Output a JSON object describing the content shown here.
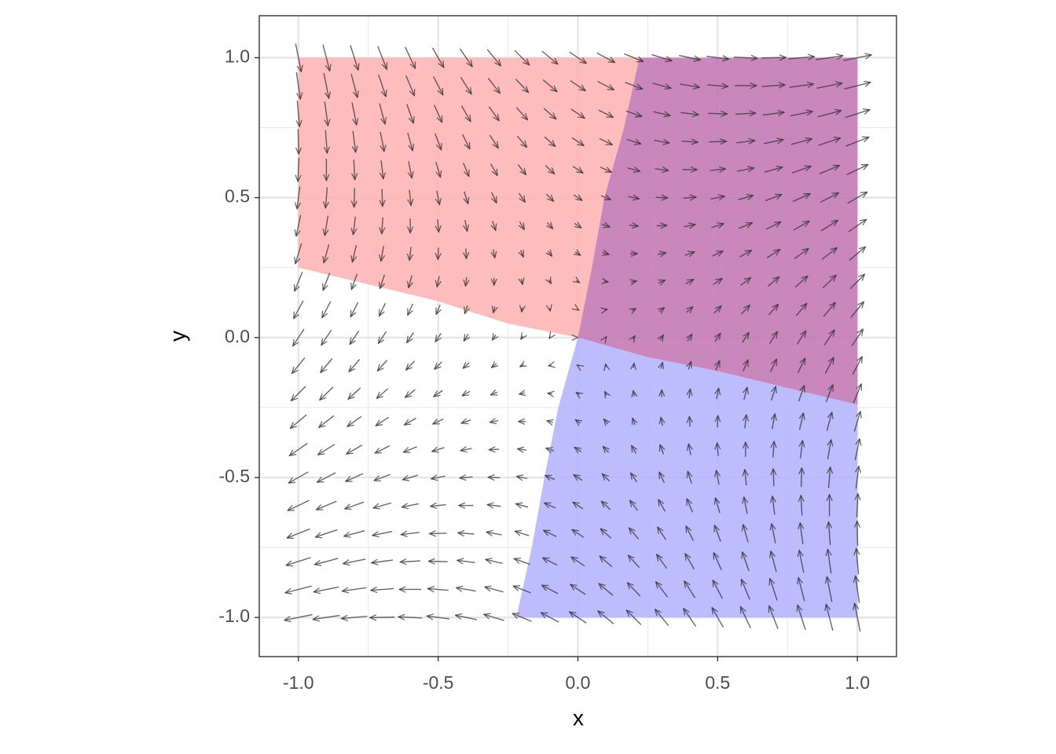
{
  "chart_data": {
    "type": "quiver",
    "xlabel": "x",
    "ylabel": "y",
    "xlim": [
      -1.14,
      1.14
    ],
    "ylim": [
      -1.14,
      1.15
    ],
    "xticks": [
      {
        "value": -1,
        "label": "-1.0"
      },
      {
        "value": -0.5,
        "label": "-0.5"
      },
      {
        "value": 0,
        "label": "0.0"
      },
      {
        "value": 0.5,
        "label": "0.5"
      },
      {
        "value": 1,
        "label": "1.0"
      }
    ],
    "yticks": [
      {
        "value": -1,
        "label": "-1.0"
      },
      {
        "value": -0.5,
        "label": "-0.5"
      },
      {
        "value": 0,
        "label": "0.0"
      },
      {
        "value": 0.5,
        "label": "0.5"
      },
      {
        "value": 1,
        "label": "1.0"
      }
    ],
    "minor_grid": [
      -0.75,
      -0.25,
      0.25,
      0.75
    ],
    "grid": true,
    "arrow_color": "#333333",
    "regions": [
      {
        "color": "#ffb3b3",
        "x": [
          -1,
          0.22,
          0.165,
          0.095,
          0.05,
          0,
          -0.25,
          -0.5,
          -1
        ],
        "y": [
          1,
          1,
          0.75,
          0.5,
          0.25,
          0,
          0.05,
          0.13,
          0.25
        ]
      },
      {
        "color": "#c276b3",
        "x": [
          0.22,
          1,
          1,
          0.5,
          0.25,
          0,
          0.05,
          0.095,
          0.165
        ],
        "y": [
          1,
          1,
          -0.24,
          -0.12,
          -0.07,
          0,
          0.25,
          0.5,
          0.75
        ]
      },
      {
        "color": "#b3b3ff",
        "x": [
          0,
          0.25,
          0.5,
          1,
          1,
          -0.22,
          -0.165,
          -0.12,
          -0.07
        ],
        "y": [
          0,
          -0.07,
          -0.12,
          -0.24,
          -1,
          -1,
          -0.75,
          -0.5,
          -0.25
        ]
      }
    ],
    "x": [
      -1,
      -0.9,
      -0.8,
      -0.7,
      -0.6,
      -0.5,
      -0.4,
      -0.3,
      -0.2,
      -0.1,
      0,
      0.1,
      0.2,
      0.3,
      0.4,
      0.5,
      0.6,
      0.7,
      0.8,
      0.9,
      1
    ],
    "y": [
      -1,
      -0.9,
      -0.8,
      -0.7,
      -0.6,
      -0.5,
      -0.4,
      -0.3,
      -0.2,
      -0.1,
      0,
      0.1,
      0.2,
      0.3,
      0.4,
      0.5,
      0.6,
      0.7,
      0.8,
      0.9,
      1
    ],
    "dx": [
      [
        -0.1,
        -0.096,
        -0.092,
        -0.088,
        -0.084,
        -0.08,
        -0.076,
        -0.072,
        -0.068,
        -0.064,
        -0.06,
        -0.056,
        -0.052,
        -0.048,
        -0.044,
        -0.04,
        -0.036,
        -0.032,
        -0.028,
        -0.024,
        -0.02
      ],
      [
        -0.094,
        -0.09,
        -0.086,
        -0.082,
        -0.078,
        -0.074,
        -0.07,
        -0.066,
        -0.062,
        -0.058,
        -0.054,
        -0.05,
        -0.046,
        -0.042,
        -0.038,
        -0.034,
        -0.03,
        -0.026,
        -0.022,
        -0.018,
        -0.014
      ],
      [
        -0.088,
        -0.084,
        -0.08,
        -0.076,
        -0.072,
        -0.068,
        -0.064,
        -0.06,
        -0.056,
        -0.052,
        -0.048,
        -0.044,
        -0.04,
        -0.036,
        -0.032,
        -0.028,
        -0.024,
        -0.02,
        -0.016,
        -0.012,
        -0.008
      ],
      [
        -0.082,
        -0.078,
        -0.074,
        -0.07,
        -0.066,
        -0.062,
        -0.058,
        -0.054,
        -0.05,
        -0.046,
        -0.042,
        -0.038,
        -0.034,
        -0.03,
        -0.026,
        -0.022,
        -0.018,
        -0.014,
        -0.01,
        -0.006,
        -0.002
      ],
      [
        -0.076,
        -0.072,
        -0.068,
        -0.064,
        -0.06,
        -0.056,
        -0.052,
        -0.048,
        -0.044,
        -0.04,
        -0.036,
        -0.032,
        -0.028,
        -0.024,
        -0.02,
        -0.016,
        -0.012,
        -0.008,
        -0.004,
        0,
        0.004
      ],
      [
        -0.07,
        -0.066,
        -0.062,
        -0.058,
        -0.054,
        -0.05,
        -0.046,
        -0.042,
        -0.038,
        -0.034,
        -0.03,
        -0.026,
        -0.022,
        -0.018,
        -0.014,
        -0.01,
        -0.006,
        -0.002,
        0.002,
        0.006,
        0.01
      ],
      [
        -0.064,
        -0.06,
        -0.056,
        -0.052,
        -0.048,
        -0.044,
        -0.04,
        -0.036,
        -0.032,
        -0.028,
        -0.024,
        -0.02,
        -0.016,
        -0.012,
        -0.008,
        -0.004,
        0,
        0.004,
        0.008,
        0.012,
        0.016
      ],
      [
        -0.058,
        -0.054,
        -0.05,
        -0.046,
        -0.042,
        -0.038,
        -0.034,
        -0.03,
        -0.026,
        -0.022,
        -0.018,
        -0.014,
        -0.01,
        -0.006,
        -0.002,
        0.002,
        0.006,
        0.01,
        0.014,
        0.018,
        0.022
      ],
      [
        -0.052,
        -0.048,
        -0.044,
        -0.04,
        -0.036,
        -0.032,
        -0.028,
        -0.024,
        -0.02,
        -0.016,
        -0.012,
        -0.008,
        -0.004,
        0,
        0.004,
        0.008,
        0.012,
        0.016,
        0.02,
        0.024,
        0.028
      ],
      [
        -0.046,
        -0.042,
        -0.038,
        -0.034,
        -0.03,
        -0.026,
        -0.022,
        -0.018,
        -0.014,
        -0.01,
        -0.006,
        -0.002,
        0.002,
        0.006,
        0.01,
        0.014,
        0.018,
        0.022,
        0.026,
        0.03,
        0.034
      ],
      [
        -0.04,
        -0.036,
        -0.032,
        -0.028,
        -0.024,
        -0.02,
        -0.016,
        -0.012,
        -0.008,
        -0.004,
        0,
        0.004,
        0.008,
        0.012,
        0.016,
        0.02,
        0.024,
        0.028,
        0.032,
        0.036,
        0.04
      ],
      [
        -0.034,
        -0.03,
        -0.026,
        -0.022,
        -0.018,
        -0.014,
        -0.01,
        -0.006,
        -0.002,
        0.002,
        0.006,
        0.01,
        0.014,
        0.018,
        0.022,
        0.026,
        0.03,
        0.034,
        0.038,
        0.042,
        0.046
      ],
      [
        -0.028,
        -0.024,
        -0.02,
        -0.016,
        -0.012,
        -0.008,
        -0.004,
        0,
        0.004,
        0.008,
        0.012,
        0.016,
        0.02,
        0.024,
        0.028,
        0.032,
        0.036,
        0.04,
        0.044,
        0.048,
        0.052
      ],
      [
        -0.022,
        -0.018,
        -0.014,
        -0.01,
        -0.006,
        -0.002,
        0.002,
        0.006,
        0.01,
        0.014,
        0.018,
        0.022,
        0.026,
        0.03,
        0.034,
        0.038,
        0.042,
        0.046,
        0.05,
        0.054,
        0.058
      ],
      [
        -0.016,
        -0.012,
        -0.008,
        -0.004,
        0,
        0.004,
        0.008,
        0.012,
        0.016,
        0.02,
        0.024,
        0.028,
        0.032,
        0.036,
        0.04,
        0.044,
        0.048,
        0.052,
        0.056,
        0.06,
        0.064
      ],
      [
        -0.01,
        -0.006,
        -0.002,
        0.002,
        0.006,
        0.01,
        0.014,
        0.018,
        0.022,
        0.026,
        0.03,
        0.034,
        0.038,
        0.042,
        0.046,
        0.05,
        0.054,
        0.058,
        0.062,
        0.066,
        0.07
      ],
      [
        -0.004,
        0,
        0.004,
        0.008,
        0.012,
        0.016,
        0.02,
        0.024,
        0.028,
        0.032,
        0.036,
        0.04,
        0.044,
        0.048,
        0.052,
        0.056,
        0.06,
        0.064,
        0.068,
        0.072,
        0.076
      ],
      [
        0.002,
        0.006,
        0.01,
        0.014,
        0.018,
        0.022,
        0.026,
        0.03,
        0.034,
        0.038,
        0.042,
        0.046,
        0.05,
        0.054,
        0.058,
        0.062,
        0.066,
        0.07,
        0.074,
        0.078,
        0.082
      ],
      [
        0.008,
        0.012,
        0.016,
        0.02,
        0.024,
        0.028,
        0.032,
        0.036,
        0.04,
        0.044,
        0.048,
        0.052,
        0.056,
        0.06,
        0.064,
        0.068,
        0.072,
        0.076,
        0.08,
        0.084,
        0.088
      ],
      [
        0.014,
        0.018,
        0.022,
        0.026,
        0.03,
        0.034,
        0.038,
        0.042,
        0.046,
        0.05,
        0.054,
        0.058,
        0.062,
        0.066,
        0.07,
        0.074,
        0.078,
        0.082,
        0.086,
        0.09,
        0.094
      ],
      [
        0.02,
        0.024,
        0.028,
        0.032,
        0.036,
        0.04,
        0.044,
        0.048,
        0.052,
        0.056,
        0.06,
        0.064,
        0.068,
        0.072,
        0.076,
        0.08,
        0.084,
        0.088,
        0.092,
        0.096,
        0.1
      ]
    ],
    "dy": [
      [
        -0.02,
        -0.014,
        -0.008,
        -0.002,
        0.004,
        0.01,
        0.016,
        0.022,
        0.028,
        0.034,
        0.04,
        0.046,
        0.052,
        0.058,
        0.064,
        0.07,
        0.076,
        0.082,
        0.088,
        0.094,
        0.1
      ],
      [
        -0.024,
        -0.018,
        -0.012,
        -0.006,
        0,
        0.006,
        0.012,
        0.018,
        0.024,
        0.03,
        0.036,
        0.042,
        0.048,
        0.054,
        0.06,
        0.066,
        0.072,
        0.078,
        0.084,
        0.09,
        0.096
      ],
      [
        -0.028,
        -0.022,
        -0.016,
        -0.01,
        -0.004,
        0.002,
        0.008,
        0.014,
        0.02,
        0.026,
        0.032,
        0.038,
        0.044,
        0.05,
        0.056,
        0.062,
        0.068,
        0.074,
        0.08,
        0.086,
        0.092
      ],
      [
        -0.032,
        -0.026,
        -0.02,
        -0.014,
        -0.008,
        -0.002,
        0.004,
        0.01,
        0.016,
        0.022,
        0.028,
        0.034,
        0.04,
        0.046,
        0.052,
        0.058,
        0.064,
        0.07,
        0.076,
        0.082,
        0.088
      ],
      [
        -0.036,
        -0.03,
        -0.024,
        -0.018,
        -0.012,
        -0.006,
        0,
        0.006,
        0.012,
        0.018,
        0.024,
        0.03,
        0.036,
        0.042,
        0.048,
        0.054,
        0.06,
        0.066,
        0.072,
        0.078,
        0.084
      ],
      [
        -0.04,
        -0.034,
        -0.028,
        -0.022,
        -0.016,
        -0.01,
        -0.004,
        0.002,
        0.008,
        0.014,
        0.02,
        0.026,
        0.032,
        0.038,
        0.044,
        0.05,
        0.056,
        0.062,
        0.068,
        0.074,
        0.08
      ],
      [
        -0.044,
        -0.038,
        -0.032,
        -0.026,
        -0.02,
        -0.014,
        -0.008,
        -0.002,
        0.004,
        0.01,
        0.016,
        0.022,
        0.028,
        0.034,
        0.04,
        0.046,
        0.052,
        0.058,
        0.064,
        0.07,
        0.076
      ],
      [
        -0.048,
        -0.042,
        -0.036,
        -0.03,
        -0.024,
        -0.018,
        -0.012,
        -0.006,
        0,
        0.006,
        0.012,
        0.018,
        0.024,
        0.03,
        0.036,
        0.042,
        0.048,
        0.054,
        0.06,
        0.066,
        0.072
      ],
      [
        -0.052,
        -0.046,
        -0.04,
        -0.034,
        -0.028,
        -0.022,
        -0.016,
        -0.01,
        -0.004,
        0.002,
        0.008,
        0.014,
        0.02,
        0.026,
        0.032,
        0.038,
        0.044,
        0.05,
        0.056,
        0.062,
        0.068
      ],
      [
        -0.056,
        -0.05,
        -0.044,
        -0.038,
        -0.032,
        -0.026,
        -0.02,
        -0.014,
        -0.008,
        -0.002,
        0.004,
        0.01,
        0.016,
        0.022,
        0.028,
        0.034,
        0.04,
        0.046,
        0.052,
        0.058,
        0.064
      ],
      [
        -0.06,
        -0.054,
        -0.048,
        -0.042,
        -0.036,
        -0.03,
        -0.024,
        -0.018,
        -0.012,
        -0.006,
        0,
        0.006,
        0.012,
        0.018,
        0.024,
        0.03,
        0.036,
        0.042,
        0.048,
        0.054,
        0.06
      ],
      [
        -0.064,
        -0.058,
        -0.052,
        -0.046,
        -0.04,
        -0.034,
        -0.028,
        -0.022,
        -0.016,
        -0.01,
        -0.004,
        0.002,
        0.008,
        0.014,
        0.02,
        0.026,
        0.032,
        0.038,
        0.044,
        0.05,
        0.056
      ],
      [
        -0.068,
        -0.062,
        -0.056,
        -0.05,
        -0.044,
        -0.038,
        -0.032,
        -0.026,
        -0.02,
        -0.014,
        -0.008,
        -0.002,
        0.004,
        0.01,
        0.016,
        0.022,
        0.028,
        0.034,
        0.04,
        0.046,
        0.052
      ],
      [
        -0.072,
        -0.066,
        -0.06,
        -0.054,
        -0.048,
        -0.042,
        -0.036,
        -0.03,
        -0.024,
        -0.018,
        -0.012,
        -0.006,
        0,
        0.006,
        0.012,
        0.018,
        0.024,
        0.03,
        0.036,
        0.042,
        0.048
      ],
      [
        -0.076,
        -0.07,
        -0.064,
        -0.058,
        -0.052,
        -0.046,
        -0.04,
        -0.034,
        -0.028,
        -0.022,
        -0.016,
        -0.01,
        -0.004,
        0.002,
        0.008,
        0.014,
        0.02,
        0.026,
        0.032,
        0.038,
        0.044
      ],
      [
        -0.08,
        -0.074,
        -0.068,
        -0.062,
        -0.056,
        -0.05,
        -0.044,
        -0.038,
        -0.032,
        -0.026,
        -0.02,
        -0.014,
        -0.008,
        -0.002,
        0.004,
        0.01,
        0.016,
        0.022,
        0.028,
        0.034,
        0.04
      ],
      [
        -0.084,
        -0.078,
        -0.072,
        -0.066,
        -0.06,
        -0.054,
        -0.048,
        -0.042,
        -0.036,
        -0.03,
        -0.024,
        -0.018,
        -0.012,
        -0.006,
        0,
        0.006,
        0.012,
        0.018,
        0.024,
        0.03,
        0.036
      ],
      [
        -0.088,
        -0.082,
        -0.076,
        -0.07,
        -0.064,
        -0.058,
        -0.052,
        -0.046,
        -0.04,
        -0.034,
        -0.028,
        -0.022,
        -0.016,
        -0.01,
        -0.004,
        0.002,
        0.008,
        0.014,
        0.02,
        0.026,
        0.032
      ],
      [
        -0.092,
        -0.086,
        -0.08,
        -0.074,
        -0.068,
        -0.062,
        -0.056,
        -0.05,
        -0.044,
        -0.038,
        -0.032,
        -0.026,
        -0.02,
        -0.014,
        -0.008,
        -0.002,
        0.004,
        0.01,
        0.016,
        0.022,
        0.028
      ],
      [
        -0.096,
        -0.09,
        -0.084,
        -0.078,
        -0.072,
        -0.066,
        -0.06,
        -0.054,
        -0.048,
        -0.042,
        -0.036,
        -0.03,
        -0.024,
        -0.018,
        -0.012,
        -0.006,
        0,
        0.006,
        0.012,
        0.018,
        0.024
      ],
      [
        -0.1,
        -0.094,
        -0.088,
        -0.082,
        -0.076,
        -0.07,
        -0.064,
        -0.058,
        -0.052,
        -0.046,
        -0.04,
        -0.034,
        -0.028,
        -0.022,
        -0.016,
        -0.01,
        -0.004,
        0.002,
        0.008,
        0.014,
        0.02
      ]
    ]
  }
}
